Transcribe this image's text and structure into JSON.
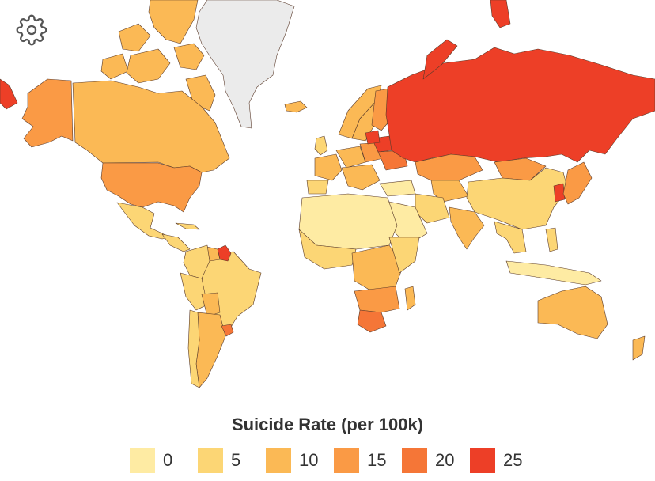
{
  "legend": {
    "title": "Suicide Rate (per 100k)",
    "items": [
      {
        "label": "0",
        "color": "#FEEBA3"
      },
      {
        "label": "5",
        "color": "#FCD675"
      },
      {
        "label": "10",
        "color": "#FBB955"
      },
      {
        "label": "15",
        "color": "#FA9A45"
      },
      {
        "label": "20",
        "color": "#F57637"
      },
      {
        "label": "25",
        "color": "#ED3F27"
      }
    ]
  },
  "settings": {
    "icon": "gear-icon"
  },
  "colors": {
    "no_data": "#EBEBEB",
    "ocean": "#FFFFFF",
    "border": "#5A3A2A"
  }
}
